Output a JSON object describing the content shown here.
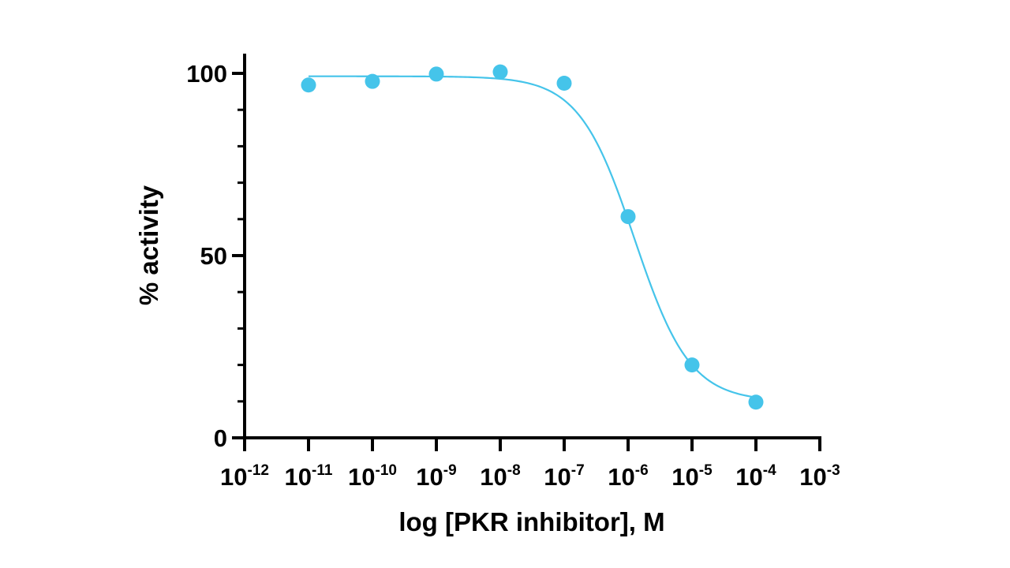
{
  "chart_data": {
    "type": "scatter",
    "title": "",
    "xlabel": "log [PKR inhibitor], M",
    "ylabel": "% activity",
    "x_scale": "log10",
    "xlim": [
      -12,
      -3
    ],
    "ylim": [
      0,
      100
    ],
    "x_ticks": [
      {
        "value": -12,
        "base": "10",
        "exp": "-12"
      },
      {
        "value": -11,
        "base": "10",
        "exp": "-11"
      },
      {
        "value": -10,
        "base": "10",
        "exp": "-10"
      },
      {
        "value": -9,
        "base": "10",
        "exp": "-9"
      },
      {
        "value": -8,
        "base": "10",
        "exp": "-8"
      },
      {
        "value": -7,
        "base": "10",
        "exp": "-7"
      },
      {
        "value": -6,
        "base": "10",
        "exp": "-6"
      },
      {
        "value": -5,
        "base": "10",
        "exp": "-5"
      },
      {
        "value": -4,
        "base": "10",
        "exp": "-4"
      },
      {
        "value": -3,
        "base": "10",
        "exp": "-3"
      }
    ],
    "y_ticks": [
      {
        "value": 0,
        "label": "0"
      },
      {
        "value": 50,
        "label": "50"
      },
      {
        "value": 100,
        "label": "100"
      }
    ],
    "y_minor_step": 10,
    "series": [
      {
        "name": "PKR inhibitor",
        "color": "#45c4ea",
        "x": [
          -11,
          -10,
          -9,
          -8,
          -7,
          -6,
          -5,
          -4
        ],
        "y": [
          96.8,
          97.8,
          99.8,
          100.4,
          97.3,
          60.7,
          20.0,
          9.8
        ]
      }
    ],
    "fit": {
      "model": "4PL",
      "bottom": 10.0,
      "top": 99.2,
      "logIC50": -5.9,
      "hill": -1.0,
      "x_range": [
        -11,
        -4
      ]
    }
  }
}
